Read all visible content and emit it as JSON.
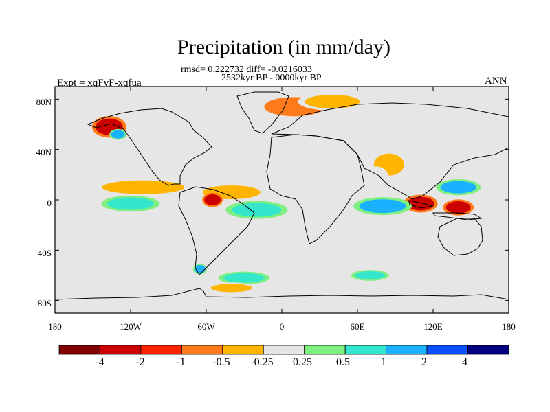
{
  "title": "Precipitation (in mm/day)",
  "stats_line": "rmsd= 0.222732 diff= -0.0216033",
  "period": "2532kyr BP - 0000kyr BP",
  "experiment": "Expt = xqFvF-xqfua",
  "season": "ANN",
  "chart_data": {
    "type": "heatmap",
    "subtype": "global map, cylindrical equidistant projection",
    "variable": "Precipitation difference",
    "units": "mm/day",
    "lon_range": [
      -180,
      180
    ],
    "lat_range": [
      -90,
      90
    ],
    "x_ticks": [
      "180",
      "120W",
      "60W",
      "0",
      "60E",
      "120E",
      "180"
    ],
    "x_tick_values": [
      -180,
      -120,
      -60,
      0,
      60,
      120,
      180
    ],
    "y_ticks": [
      "80N",
      "40N",
      "0",
      "40S",
      "80S"
    ],
    "y_tick_values": [
      80,
      40,
      0,
      -40,
      -80
    ],
    "colorbar": {
      "labels": [
        "-4",
        "-2",
        "-1",
        "-0.5",
        "-0.25",
        "0.25",
        "0.5",
        "1",
        "2",
        "4"
      ],
      "levels": [
        -4,
        -2,
        -1,
        -0.5,
        -0.25,
        0.25,
        0.5,
        1,
        2,
        4
      ],
      "colors": [
        "#7f0000",
        "#cc0000",
        "#ff2200",
        "#ff7a1a",
        "#ffb400",
        "#e6e6e6",
        "#7ff07f",
        "#33e6cc",
        "#1ab2ff",
        "#0a50ff",
        "#000080"
      ]
    },
    "background_color": "#e6e6e6",
    "anomalies": [
      {
        "name": "nw-america",
        "lon": -137,
        "lat": 58,
        "value": -4
      },
      {
        "name": "nw-america-coast",
        "lon": -130,
        "lat": 52,
        "value": 1
      },
      {
        "name": "north-atlantic-arctic",
        "lon": 10,
        "lat": 74,
        "value": -1
      },
      {
        "name": "arctic-siberia",
        "lon": 40,
        "lat": 78,
        "value": -0.5
      },
      {
        "name": "east-pacific-itcz",
        "lon": -110,
        "lat": 10,
        "value": -0.5
      },
      {
        "name": "atlantic-itcz",
        "lon": -40,
        "lat": 6,
        "value": -0.5
      },
      {
        "name": "amazon-east",
        "lon": -55,
        "lat": 0,
        "value": -4
      },
      {
        "name": "east-pacific-south",
        "lon": -120,
        "lat": -3,
        "value": 0.5
      },
      {
        "name": "south-atlantic",
        "lon": -20,
        "lat": -8,
        "value": 0.5
      },
      {
        "name": "tibet",
        "lon": 85,
        "lat": 28,
        "value": -0.5
      },
      {
        "name": "india",
        "lon": 75,
        "lat": 18,
        "value": -0.25
      },
      {
        "name": "maritime-continent",
        "lon": 110,
        "lat": -3,
        "value": -4
      },
      {
        "name": "new-guinea",
        "lon": 140,
        "lat": -6,
        "value": -4
      },
      {
        "name": "indian-ocean",
        "lon": 80,
        "lat": -5,
        "value": 1
      },
      {
        "name": "west-pacific",
        "lon": 140,
        "lat": 10,
        "value": 1
      },
      {
        "name": "southern-ocean-indian",
        "lon": 70,
        "lat": -60,
        "value": 0.5
      },
      {
        "name": "southern-ocean-atlantic",
        "lon": -30,
        "lat": -62,
        "value": 0.5
      },
      {
        "name": "antarctic-coast",
        "lon": -40,
        "lat": -70,
        "value": -0.5
      },
      {
        "name": "antarctic-peninsula",
        "lon": -65,
        "lat": -55,
        "value": 1
      }
    ]
  }
}
